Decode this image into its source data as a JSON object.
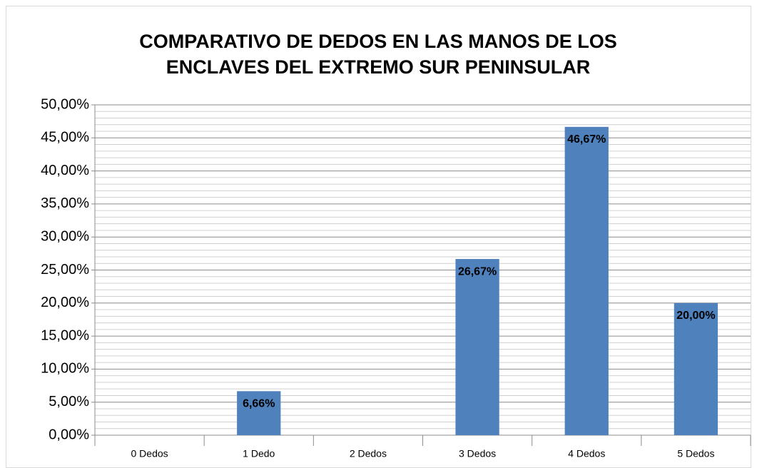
{
  "chart_data": {
    "type": "bar",
    "title": [
      "COMPARATIVO DE DEDOS EN LAS MANOS DE LOS",
      "ENCLAVES DEL EXTREMO SUR PENINSULAR"
    ],
    "categories": [
      "0 Dedos",
      "1 Dedo",
      "2 Dedos",
      "3 Dedos",
      "4 Dedos",
      "5 Dedos"
    ],
    "values": [
      0,
      6.66,
      0,
      26.67,
      46.67,
      20.0
    ],
    "value_labels": [
      null,
      "6,66%",
      null,
      "26,67%",
      "46,67%",
      "20,00%"
    ],
    "color": "#4f81bd",
    "ylim": [
      0,
      50
    ],
    "yticks": [
      {
        "value": 0,
        "label": "0,00%"
      },
      {
        "value": 5,
        "label": "5,00%"
      },
      {
        "value": 10,
        "label": "10,00%"
      },
      {
        "value": 15,
        "label": "15,00%"
      },
      {
        "value": 20,
        "label": "20,00%"
      },
      {
        "value": 25,
        "label": "25,00%"
      },
      {
        "value": 30,
        "label": "30,00%"
      },
      {
        "value": 35,
        "label": "35,00%"
      },
      {
        "value": 40,
        "label": "40,00%"
      },
      {
        "value": 45,
        "label": "45,00%"
      },
      {
        "value": 50,
        "label": "50,00%"
      }
    ],
    "minor_yticks": [
      1,
      2,
      3,
      4,
      6,
      7,
      8,
      9,
      11,
      12,
      13,
      14,
      16,
      17,
      18,
      19,
      21,
      22,
      23,
      24,
      26,
      27,
      28,
      29,
      31,
      32,
      33,
      34,
      36,
      37,
      38,
      39,
      41,
      42,
      43,
      44,
      46,
      47,
      48,
      49
    ],
    "grid": true
  }
}
